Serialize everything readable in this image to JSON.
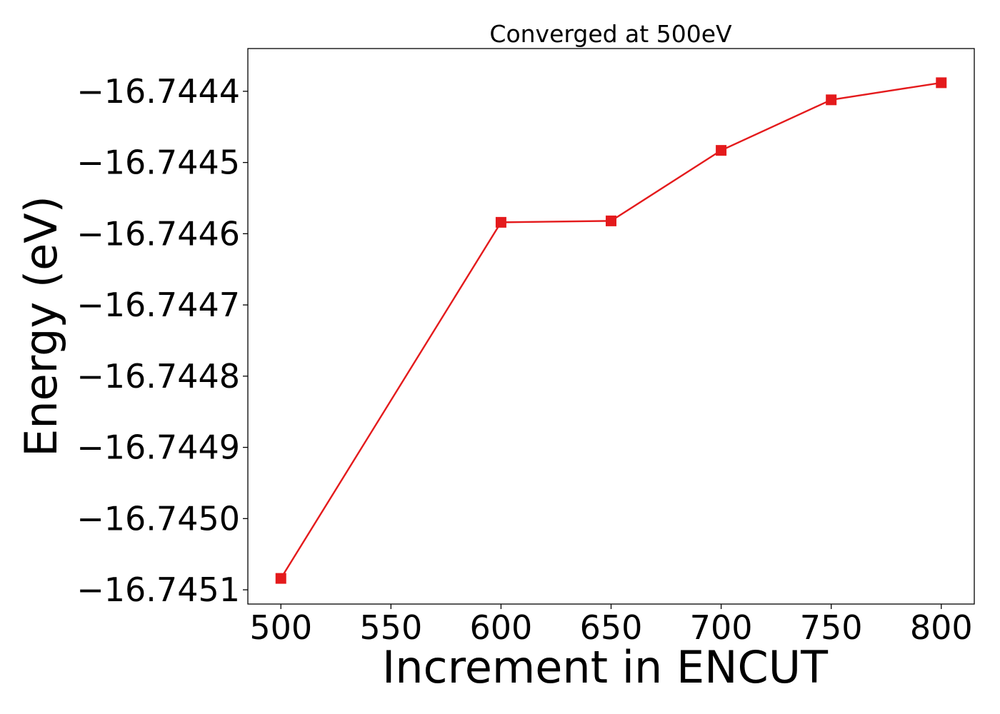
{
  "chart_data": {
    "type": "line",
    "title": "Converged at 500eV",
    "xlabel": "Increment in ENCUT",
    "ylabel": "Energy (eV)",
    "x": [
      500,
      600,
      650,
      700,
      750,
      800
    ],
    "series": [
      {
        "values": [
          -16.745084,
          -16.744584,
          -16.744582,
          -16.744483,
          -16.744412,
          -16.744388
        ],
        "color": "#e41a1c",
        "marker": "square"
      }
    ],
    "xticks": [
      500,
      550,
      600,
      650,
      700,
      750,
      800
    ],
    "xtick_labels": [
      "500",
      "550",
      "600",
      "650",
      "700",
      "750",
      "800"
    ],
    "yticks": [
      -16.7451,
      -16.745,
      -16.7449,
      -16.7448,
      -16.7447,
      -16.7446,
      -16.7445,
      -16.7444
    ],
    "ytick_labels": [
      "−16.7451",
      "−16.7450",
      "−16.7449",
      "−16.7448",
      "−16.7447",
      "−16.7446",
      "−16.7445",
      "−16.7444"
    ],
    "xlim": [
      485,
      815
    ],
    "ylim": [
      -16.74512,
      -16.74434
    ],
    "grid": false,
    "legend": "none"
  }
}
